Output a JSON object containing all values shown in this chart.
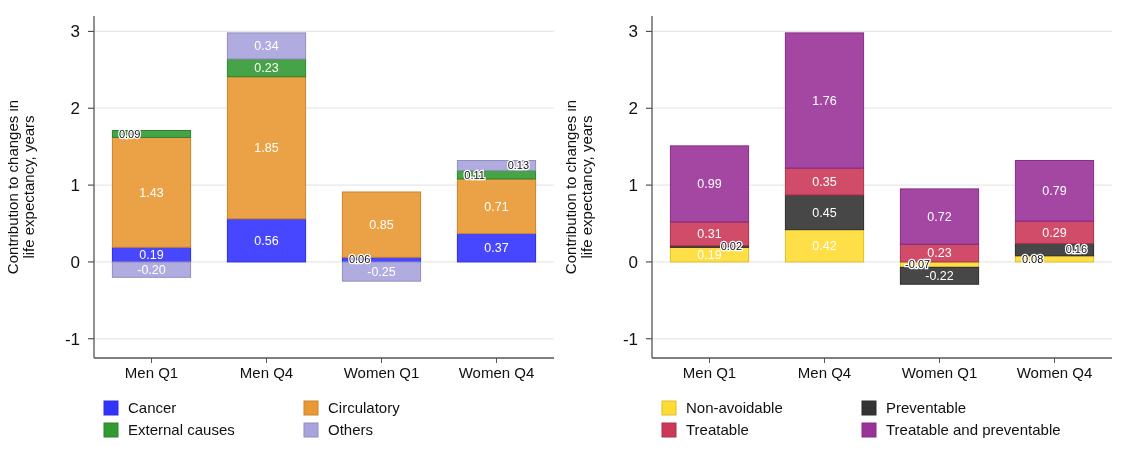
{
  "chart_data": [
    {
      "type": "bar",
      "stacked": true,
      "categories": [
        "Men Q1",
        "Men Q4",
        "Women Q1",
        "Women Q4"
      ],
      "ylabel": "Contribution to changes in life expectancy, years",
      "ylim": [
        -1.25,
        3.2
      ],
      "yticks": [
        -1,
        0,
        1,
        2,
        3
      ],
      "grid": "y",
      "legend": "bottom",
      "series": [
        {
          "name": "Cancer",
          "color": "#3333ff",
          "values": [
            0.19,
            0.56,
            0.06,
            0.37
          ],
          "value_labels": [
            "0.19",
            "0.56",
            "0.06",
            "0.37"
          ]
        },
        {
          "name": "Circulatory",
          "color": "#e99833",
          "values": [
            1.43,
            1.85,
            0.85,
            0.71
          ],
          "value_labels": [
            "1.43",
            "1.85",
            "0.85",
            "0.71"
          ]
        },
        {
          "name": "External causes",
          "color": "#339933",
          "values": [
            0.09,
            0.23,
            null,
            0.11
          ],
          "value_labels": [
            "0.09",
            "0.23",
            null,
            "0.11"
          ]
        },
        {
          "name": "Others",
          "color": "#a8a3dc",
          "values": [
            -0.2,
            0.34,
            -0.25,
            0.13
          ],
          "value_labels": [
            "-0.20",
            "0.34",
            "-0.25",
            "0.13"
          ]
        }
      ]
    },
    {
      "type": "bar",
      "stacked": true,
      "categories": [
        "Men Q1",
        "Men Q4",
        "Women Q1",
        "Women Q4"
      ],
      "ylabel": "Contribution to changes in life expectancy, years",
      "ylim": [
        -1.25,
        3.2
      ],
      "yticks": [
        -1,
        0,
        1,
        2,
        3
      ],
      "grid": "y",
      "legend": "bottom",
      "series": [
        {
          "name": "Non-avoidable",
          "color": "#ffdb33",
          "values": [
            0.19,
            0.42,
            -0.07,
            0.08
          ],
          "value_labels": [
            "0.19",
            "0.42",
            "-0.07",
            "0.08"
          ]
        },
        {
          "name": "Preventable",
          "color": "#333333",
          "values": [
            0.02,
            0.45,
            -0.22,
            0.16
          ],
          "value_labels": [
            "0.02",
            "0.45",
            "-0.22",
            "0.16"
          ]
        },
        {
          "name": "Treatable",
          "color": "#cc3858",
          "values": [
            0.31,
            0.35,
            0.23,
            0.29
          ],
          "value_labels": [
            "0.31",
            "0.35",
            "0.23",
            "0.29"
          ]
        },
        {
          "name": "Treatable and preventable",
          "color": "#993399",
          "values": [
            0.99,
            1.76,
            0.72,
            0.79
          ],
          "value_labels": [
            "0.99",
            "1.76",
            "0.72",
            "0.79"
          ]
        }
      ]
    }
  ]
}
